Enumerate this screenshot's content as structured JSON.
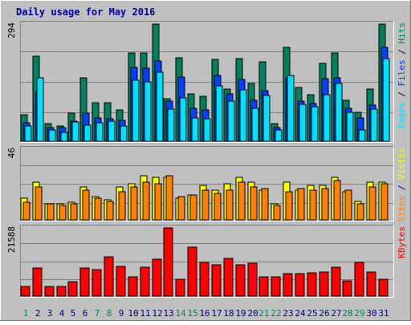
{
  "title": "Daily usage for May 2016",
  "colors": {
    "background": "#C0C0C0",
    "title": "#0000A0",
    "hits": "#00805C",
    "files": "#0040FF",
    "pages": "#00E0FF",
    "visits": "#FFFF00",
    "sites": "#FF8000",
    "kbytes": "#FF0000",
    "weekday_label": "#000080",
    "weekend_label": "#00805C"
  },
  "chart_data": [
    {
      "type": "bar",
      "panel": "hits-files-pages",
      "x": [
        1,
        2,
        3,
        4,
        5,
        6,
        7,
        8,
        9,
        10,
        11,
        12,
        13,
        14,
        15,
        16,
        17,
        18,
        19,
        20,
        21,
        22,
        23,
        24,
        25,
        26,
        27,
        28,
        29,
        30,
        31
      ],
      "ylabel": "Pages / Files / Hits",
      "ymax_label": "294",
      "ylim": [
        0,
        294
      ],
      "series": [
        {
          "name": "Hits",
          "values": [
            66,
            211,
            44,
            38,
            69,
            157,
            96,
            95,
            78,
            218,
            219,
            291,
            105,
            206,
            118,
            112,
            202,
            130,
            204,
            143,
            197,
            44,
            232,
            134,
            115,
            193,
            219,
            101,
            71,
            129,
            290
          ]
        },
        {
          "name": "Files",
          "values": [
            46,
            121,
            34,
            33,
            50,
            70,
            57,
            56,
            52,
            182,
            181,
            198,
            99,
            158,
            81,
            78,
            162,
            117,
            152,
            102,
            125,
            33,
            155,
            99,
            94,
            154,
            157,
            82,
            57,
            90,
            232
          ]
        },
        {
          "name": "Pages",
          "values": [
            38,
            157,
            27,
            22,
            48,
            40,
            45,
            49,
            37,
            150,
            147,
            170,
            79,
            108,
            57,
            56,
            138,
            99,
            128,
            81,
            114,
            27,
            163,
            92,
            86,
            116,
            144,
            72,
            28,
            79,
            205
          ]
        }
      ]
    },
    {
      "type": "bar",
      "panel": "visits-sites",
      "x": [
        1,
        2,
        3,
        4,
        5,
        6,
        7,
        8,
        9,
        10,
        11,
        12,
        13,
        14,
        15,
        16,
        17,
        18,
        19,
        20,
        21,
        22,
        23,
        24,
        25,
        26,
        27,
        28,
        29,
        30,
        31
      ],
      "ylabel": "Sites / Visits",
      "ymax_label": "46",
      "ylim": [
        0,
        46
      ],
      "series": [
        {
          "name": "Visits",
          "values": [
            14,
            24,
            10,
            10,
            11,
            21,
            15,
            13,
            21,
            23,
            28,
            27,
            27,
            14,
            16,
            22,
            19,
            23,
            27,
            24,
            19,
            10,
            24,
            19,
            22,
            22,
            27,
            18,
            12,
            24,
            24
          ]
        },
        {
          "name": "Sites",
          "values": [
            11,
            21,
            10,
            9,
            10,
            19,
            14,
            12,
            18,
            21,
            24,
            23,
            28,
            15,
            16,
            19,
            17,
            19,
            24,
            21,
            20,
            9,
            18,
            20,
            19,
            20,
            25,
            19,
            10,
            21,
            23
          ]
        }
      ]
    },
    {
      "type": "bar",
      "panel": "kbytes",
      "x": [
        1,
        2,
        3,
        4,
        5,
        6,
        7,
        8,
        9,
        10,
        11,
        12,
        13,
        14,
        15,
        16,
        17,
        18,
        19,
        20,
        21,
        22,
        23,
        24,
        25,
        26,
        27,
        28,
        29,
        30,
        31
      ],
      "ylabel": "KBytes",
      "ymax_label": "21588",
      "ylim": [
        0,
        21588
      ],
      "series": [
        {
          "name": "KBytes",
          "values": [
            3000,
            8600,
            2900,
            2900,
            4400,
            8800,
            8300,
            12200,
            9100,
            5900,
            8900,
            11300,
            21100,
            5300,
            15200,
            10300,
            9800,
            11700,
            9700,
            10100,
            5900,
            5900,
            7000,
            6900,
            7200,
            7400,
            9000,
            4700,
            10500,
            7500,
            5300
          ]
        }
      ]
    }
  ],
  "days": [
    {
      "label": "1",
      "weekend": true
    },
    {
      "label": "2",
      "weekend": false
    },
    {
      "label": "3",
      "weekend": false
    },
    {
      "label": "4",
      "weekend": false
    },
    {
      "label": "5",
      "weekend": false
    },
    {
      "label": "6",
      "weekend": false
    },
    {
      "label": "7",
      "weekend": true
    },
    {
      "label": "8",
      "weekend": true
    },
    {
      "label": "9",
      "weekend": false
    },
    {
      "label": "10",
      "weekend": false
    },
    {
      "label": "11",
      "weekend": false
    },
    {
      "label": "12",
      "weekend": false
    },
    {
      "label": "13",
      "weekend": false
    },
    {
      "label": "14",
      "weekend": true
    },
    {
      "label": "15",
      "weekend": true
    },
    {
      "label": "16",
      "weekend": false
    },
    {
      "label": "17",
      "weekend": false
    },
    {
      "label": "18",
      "weekend": false
    },
    {
      "label": "19",
      "weekend": false
    },
    {
      "label": "20",
      "weekend": false
    },
    {
      "label": "21",
      "weekend": true
    },
    {
      "label": "22",
      "weekend": true
    },
    {
      "label": "23",
      "weekend": false
    },
    {
      "label": "24",
      "weekend": false
    },
    {
      "label": "25",
      "weekend": false
    },
    {
      "label": "26",
      "weekend": false
    },
    {
      "label": "27",
      "weekend": false
    },
    {
      "label": "28",
      "weekend": true
    },
    {
      "label": "29",
      "weekend": true
    },
    {
      "label": "30",
      "weekend": false
    },
    {
      "label": "31",
      "weekend": false
    }
  ],
  "axis_labels": {
    "panel1": [
      {
        "text": "Pages",
        "color": "#00E0FF"
      },
      {
        "text": " / ",
        "color": "#000080"
      },
      {
        "text": "Files",
        "color": "#0040FF"
      },
      {
        "text": " / ",
        "color": "#000080"
      },
      {
        "text": "Hits",
        "color": "#00805C"
      }
    ],
    "panel2": [
      {
        "text": "Sites",
        "color": "#FF8000"
      },
      {
        "text": " / ",
        "color": "#000080"
      },
      {
        "text": "Visits",
        "color": "#FFFF00"
      }
    ],
    "panel3": [
      {
        "text": "KBytes",
        "color": "#FF0000"
      }
    ]
  }
}
